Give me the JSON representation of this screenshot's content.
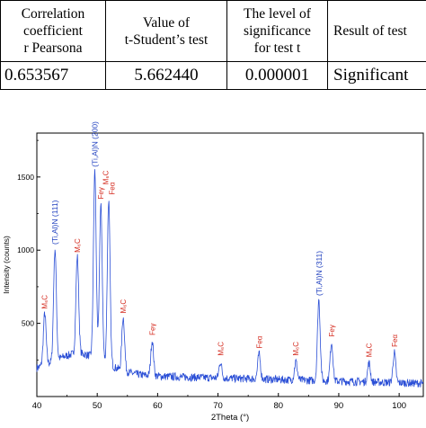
{
  "table": {
    "headers": [
      [
        "Correlation",
        "coefficient",
        "r Pearsona"
      ],
      [
        "Value of",
        "t-Student’s test"
      ],
      [
        "The level of",
        "significance",
        "for test t"
      ],
      [
        "Result of test"
      ]
    ],
    "values": [
      "0.653567",
      "5.662440",
      "0.000001",
      "Significant"
    ]
  },
  "chart_data": {
    "type": "line",
    "xlabel": "2Theta (°)",
    "ylabel": "Intensity (counts)",
    "xlim": [
      40,
      104
    ],
    "ylim": [
      0,
      1800
    ],
    "xticks": [
      40,
      50,
      60,
      70,
      80,
      90,
      100
    ],
    "yticks": [
      500,
      1000,
      1500
    ],
    "line_color": "#2b4fd6",
    "label_colors": {
      "phase": "#1f3fbf",
      "carbide": "#d42a1e"
    },
    "series": [
      {
        "peaks": [
          {
            "x": 41.3,
            "y": 570
          },
          {
            "x": 43.0,
            "y": 1010
          },
          {
            "x": 46.7,
            "y": 955
          },
          {
            "x": 49.6,
            "y": 1540
          },
          {
            "x": 50.6,
            "y": 1300
          },
          {
            "x": 51.9,
            "y": 1340
          },
          {
            "x": 54.3,
            "y": 540
          },
          {
            "x": 59.1,
            "y": 380
          },
          {
            "x": 70.4,
            "y": 235
          },
          {
            "x": 76.8,
            "y": 290
          },
          {
            "x": 82.9,
            "y": 240
          },
          {
            "x": 86.7,
            "y": 660
          },
          {
            "x": 88.8,
            "y": 370
          },
          {
            "x": 95.0,
            "y": 230
          },
          {
            "x": 99.2,
            "y": 300
          }
        ]
      }
    ],
    "annotations": [
      {
        "text": "M₆C",
        "x": 41.3,
        "y": 580,
        "kind": "carbide"
      },
      {
        "text": "(Ti,Al)N (111)",
        "x": 43.0,
        "y": 1020,
        "kind": "phase"
      },
      {
        "text": "M₆C",
        "x": 46.7,
        "y": 965,
        "kind": "carbide"
      },
      {
        "text": "(Ti,Al)N (200)",
        "x": 49.6,
        "y": 1550,
        "kind": "phase"
      },
      {
        "text": "Feγ",
        "x": 50.6,
        "y": 1330,
        "kind": "carbide"
      },
      {
        "text": "M₆C",
        "x": 51.4,
        "y": 1430,
        "kind": "carbide"
      },
      {
        "text": "Feα",
        "x": 52.4,
        "y": 1360,
        "kind": "carbide"
      },
      {
        "text": "M₆C",
        "x": 54.3,
        "y": 550,
        "kind": "carbide"
      },
      {
        "text": "Feγ",
        "x": 59.1,
        "y": 400,
        "kind": "carbide"
      },
      {
        "text": "M₆C",
        "x": 70.4,
        "y": 260,
        "kind": "carbide"
      },
      {
        "text": "Feα",
        "x": 76.8,
        "y": 310,
        "kind": "carbide"
      },
      {
        "text": "M₆C",
        "x": 82.9,
        "y": 260,
        "kind": "carbide"
      },
      {
        "text": "(Ti,Al)N (311)",
        "x": 86.7,
        "y": 670,
        "kind": "phase"
      },
      {
        "text": "Feγ",
        "x": 88.8,
        "y": 390,
        "kind": "carbide"
      },
      {
        "text": "M₆C",
        "x": 95.0,
        "y": 250,
        "kind": "carbide"
      },
      {
        "text": "Feα",
        "x": 99.2,
        "y": 320,
        "kind": "carbide"
      }
    ]
  }
}
